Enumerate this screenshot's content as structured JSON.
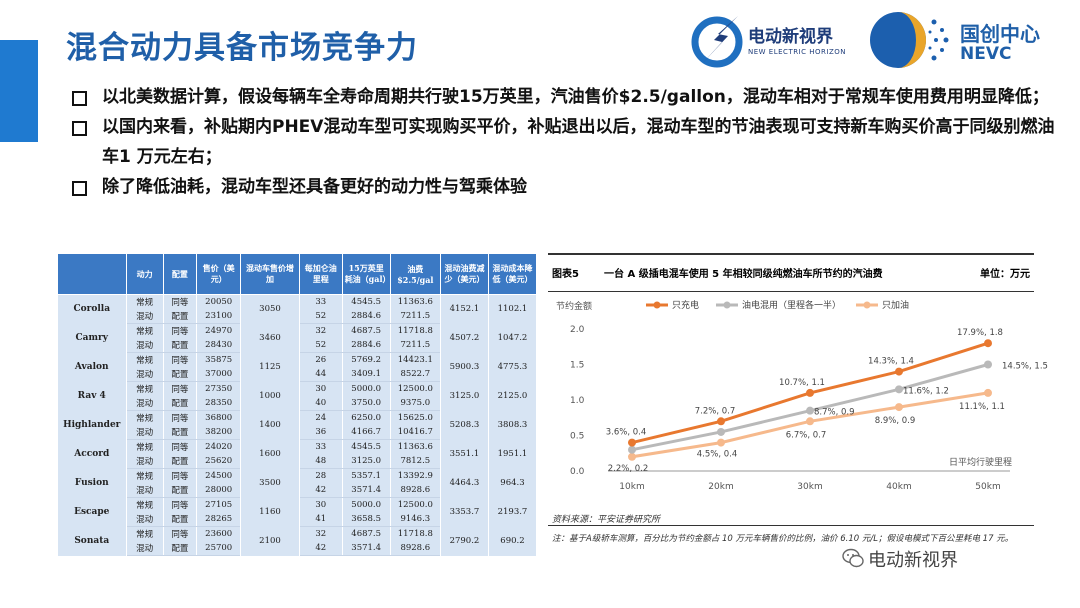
{
  "title": "混合动力具备市场竞争力",
  "logos": {
    "left_cn": "电动新视界",
    "left_en": "NEW ELECTRIC HORIZON",
    "right_cn": "国创中心",
    "right_en": "NEVC"
  },
  "bullets": [
    "以北美数据计算，假设每辆车全寿命周期共行驶15万英里，汽油售价$2.5/gallon，混动车相对于常规车使用费用明显降低；",
    "以国内来看，补贴期内PHEV混动车型可实现购买平价，补贴退出以后，混动车型的节油表现可支持新车购买价高于同级别燃油车1 万元左右；",
    "除了降低油耗，混动车型还具备更好的动力性与驾乘体验"
  ],
  "table": {
    "headers": [
      "",
      "动力",
      "配置",
      "售价（美元）",
      "混动车售价增加",
      "每加仑油里程",
      "15万英里耗油（gal）",
      "油费$2.5/gal",
      "混动油费减少（美元）",
      "混动成本降低（美元）"
    ],
    "rows": [
      {
        "car": "Corolla",
        "inc": "3050",
        "save": "4152.1",
        "pct": "1102.1",
        "sub": [
          {
            "power": "常规",
            "cfg": "同等",
            "price": "20050",
            "mpg": "33",
            "gal": "4545.5",
            "fuel": "11363.6"
          },
          {
            "power": "混动",
            "cfg": "配置",
            "price": "23100",
            "mpg": "52",
            "gal": "2884.6",
            "fuel": "7211.5"
          }
        ]
      },
      {
        "car": "Camry",
        "inc": "3460",
        "save": "4507.2",
        "pct": "1047.2",
        "sub": [
          {
            "power": "常规",
            "cfg": "同等",
            "price": "24970",
            "mpg": "32",
            "gal": "4687.5",
            "fuel": "11718.8"
          },
          {
            "power": "混动",
            "cfg": "配置",
            "price": "28430",
            "mpg": "52",
            "gal": "2884.6",
            "fuel": "7211.5"
          }
        ]
      },
      {
        "car": "Avalon",
        "inc": "1125",
        "save": "5900.3",
        "pct": "4775.3",
        "sub": [
          {
            "power": "常规",
            "cfg": "同等",
            "price": "35875",
            "mpg": "26",
            "gal": "5769.2",
            "fuel": "14423.1"
          },
          {
            "power": "混动",
            "cfg": "配置",
            "price": "37000",
            "mpg": "44",
            "gal": "3409.1",
            "fuel": "8522.7"
          }
        ]
      },
      {
        "car": "Rav 4",
        "inc": "1000",
        "save": "3125.0",
        "pct": "2125.0",
        "sub": [
          {
            "power": "常规",
            "cfg": "同等",
            "price": "27350",
            "mpg": "30",
            "gal": "5000.0",
            "fuel": "12500.0"
          },
          {
            "power": "混动",
            "cfg": "配置",
            "price": "28350",
            "mpg": "40",
            "gal": "3750.0",
            "fuel": "9375.0"
          }
        ]
      },
      {
        "car": "Highlander",
        "inc": "1400",
        "save": "5208.3",
        "pct": "3808.3",
        "sub": [
          {
            "power": "常规",
            "cfg": "同等",
            "price": "36800",
            "mpg": "24",
            "gal": "6250.0",
            "fuel": "15625.0"
          },
          {
            "power": "混动",
            "cfg": "配置",
            "price": "38200",
            "mpg": "36",
            "gal": "4166.7",
            "fuel": "10416.7"
          }
        ]
      },
      {
        "car": "Accord",
        "inc": "1600",
        "save": "3551.1",
        "pct": "1951.1",
        "sub": [
          {
            "power": "常规",
            "cfg": "同等",
            "price": "24020",
            "mpg": "33",
            "gal": "4545.5",
            "fuel": "11363.6"
          },
          {
            "power": "混动",
            "cfg": "配置",
            "price": "25620",
            "mpg": "48",
            "gal": "3125.0",
            "fuel": "7812.5"
          }
        ]
      },
      {
        "car": "Fusion",
        "inc": "3500",
        "save": "4464.3",
        "pct": "964.3",
        "sub": [
          {
            "power": "常规",
            "cfg": "同等",
            "price": "24500",
            "mpg": "28",
            "gal": "5357.1",
            "fuel": "13392.9"
          },
          {
            "power": "混动",
            "cfg": "配置",
            "price": "28000",
            "mpg": "42",
            "gal": "3571.4",
            "fuel": "8928.6"
          }
        ]
      },
      {
        "car": "Escape",
        "inc": "1160",
        "save": "3353.7",
        "pct": "2193.7",
        "sub": [
          {
            "power": "常规",
            "cfg": "同等",
            "price": "27105",
            "mpg": "30",
            "gal": "5000.0",
            "fuel": "12500.0"
          },
          {
            "power": "混动",
            "cfg": "配置",
            "price": "28265",
            "mpg": "41",
            "gal": "3658.5",
            "fuel": "9146.3"
          }
        ]
      },
      {
        "car": "Sonata",
        "inc": "2100",
        "save": "2790.2",
        "pct": "690.2",
        "sub": [
          {
            "power": "常规",
            "cfg": "同等",
            "price": "23600",
            "mpg": "32",
            "gal": "4687.5",
            "fuel": "11718.8"
          },
          {
            "power": "混动",
            "cfg": "配置",
            "price": "25700",
            "mpg": "42",
            "gal": "3571.4",
            "fuel": "8928.6"
          }
        ]
      }
    ]
  },
  "chart_header": {
    "fig": "图表5",
    "title": "一台 A 级插电混车使用 5 年相较同级纯燃油车所节约的汽油费",
    "unit": "单位：万元"
  },
  "chart_data": {
    "type": "line",
    "categories": [
      "10km",
      "20km",
      "30km",
      "40km",
      "50km"
    ],
    "ylabel": "节约金额",
    "xlabel": "日平均行驶里程",
    "ylim": [
      0,
      2.0
    ],
    "yticks": [
      "0.0",
      "0.5",
      "1.0",
      "1.5",
      "2.0"
    ],
    "legend_position": "top",
    "series": [
      {
        "name": "只充电",
        "color": "#e8782f",
        "values": [
          0.4,
          0.7,
          1.1,
          1.4,
          1.8
        ],
        "labels": [
          "3.6%, 0.4",
          "7.2%, 0.7",
          "10.7%, 1.1",
          "14.3%, 1.4",
          "17.9%, 1.8"
        ]
      },
      {
        "name": "油电混用（里程各一半）",
        "color": "#b9b9b9",
        "values": [
          0.3,
          0.55,
          0.85,
          1.15,
          1.5
        ],
        "labels": [
          "",
          "",
          "8.7%, 0.9",
          "11.6%, 1.2",
          "14.5%, 1.5"
        ]
      },
      {
        "name": "只加油",
        "color": "#f6b98c",
        "values": [
          0.2,
          0.4,
          0.7,
          0.9,
          1.1
        ],
        "labels": [
          "2.2%, 0.2",
          "4.5%, 0.4",
          "6.7%, 0.7",
          "8.9%, 0.9",
          "11.1%, 1.1"
        ]
      }
    ]
  },
  "chart_source": "资料来源：平安证券研究所",
  "chart_note": "注：基于A级轿车测算，百分比为节约金额占 10 万元车辆售价的比例，油价 6.10 元/L；假设电模式下百公里耗电 17 元。",
  "watermark": "电动新视界"
}
